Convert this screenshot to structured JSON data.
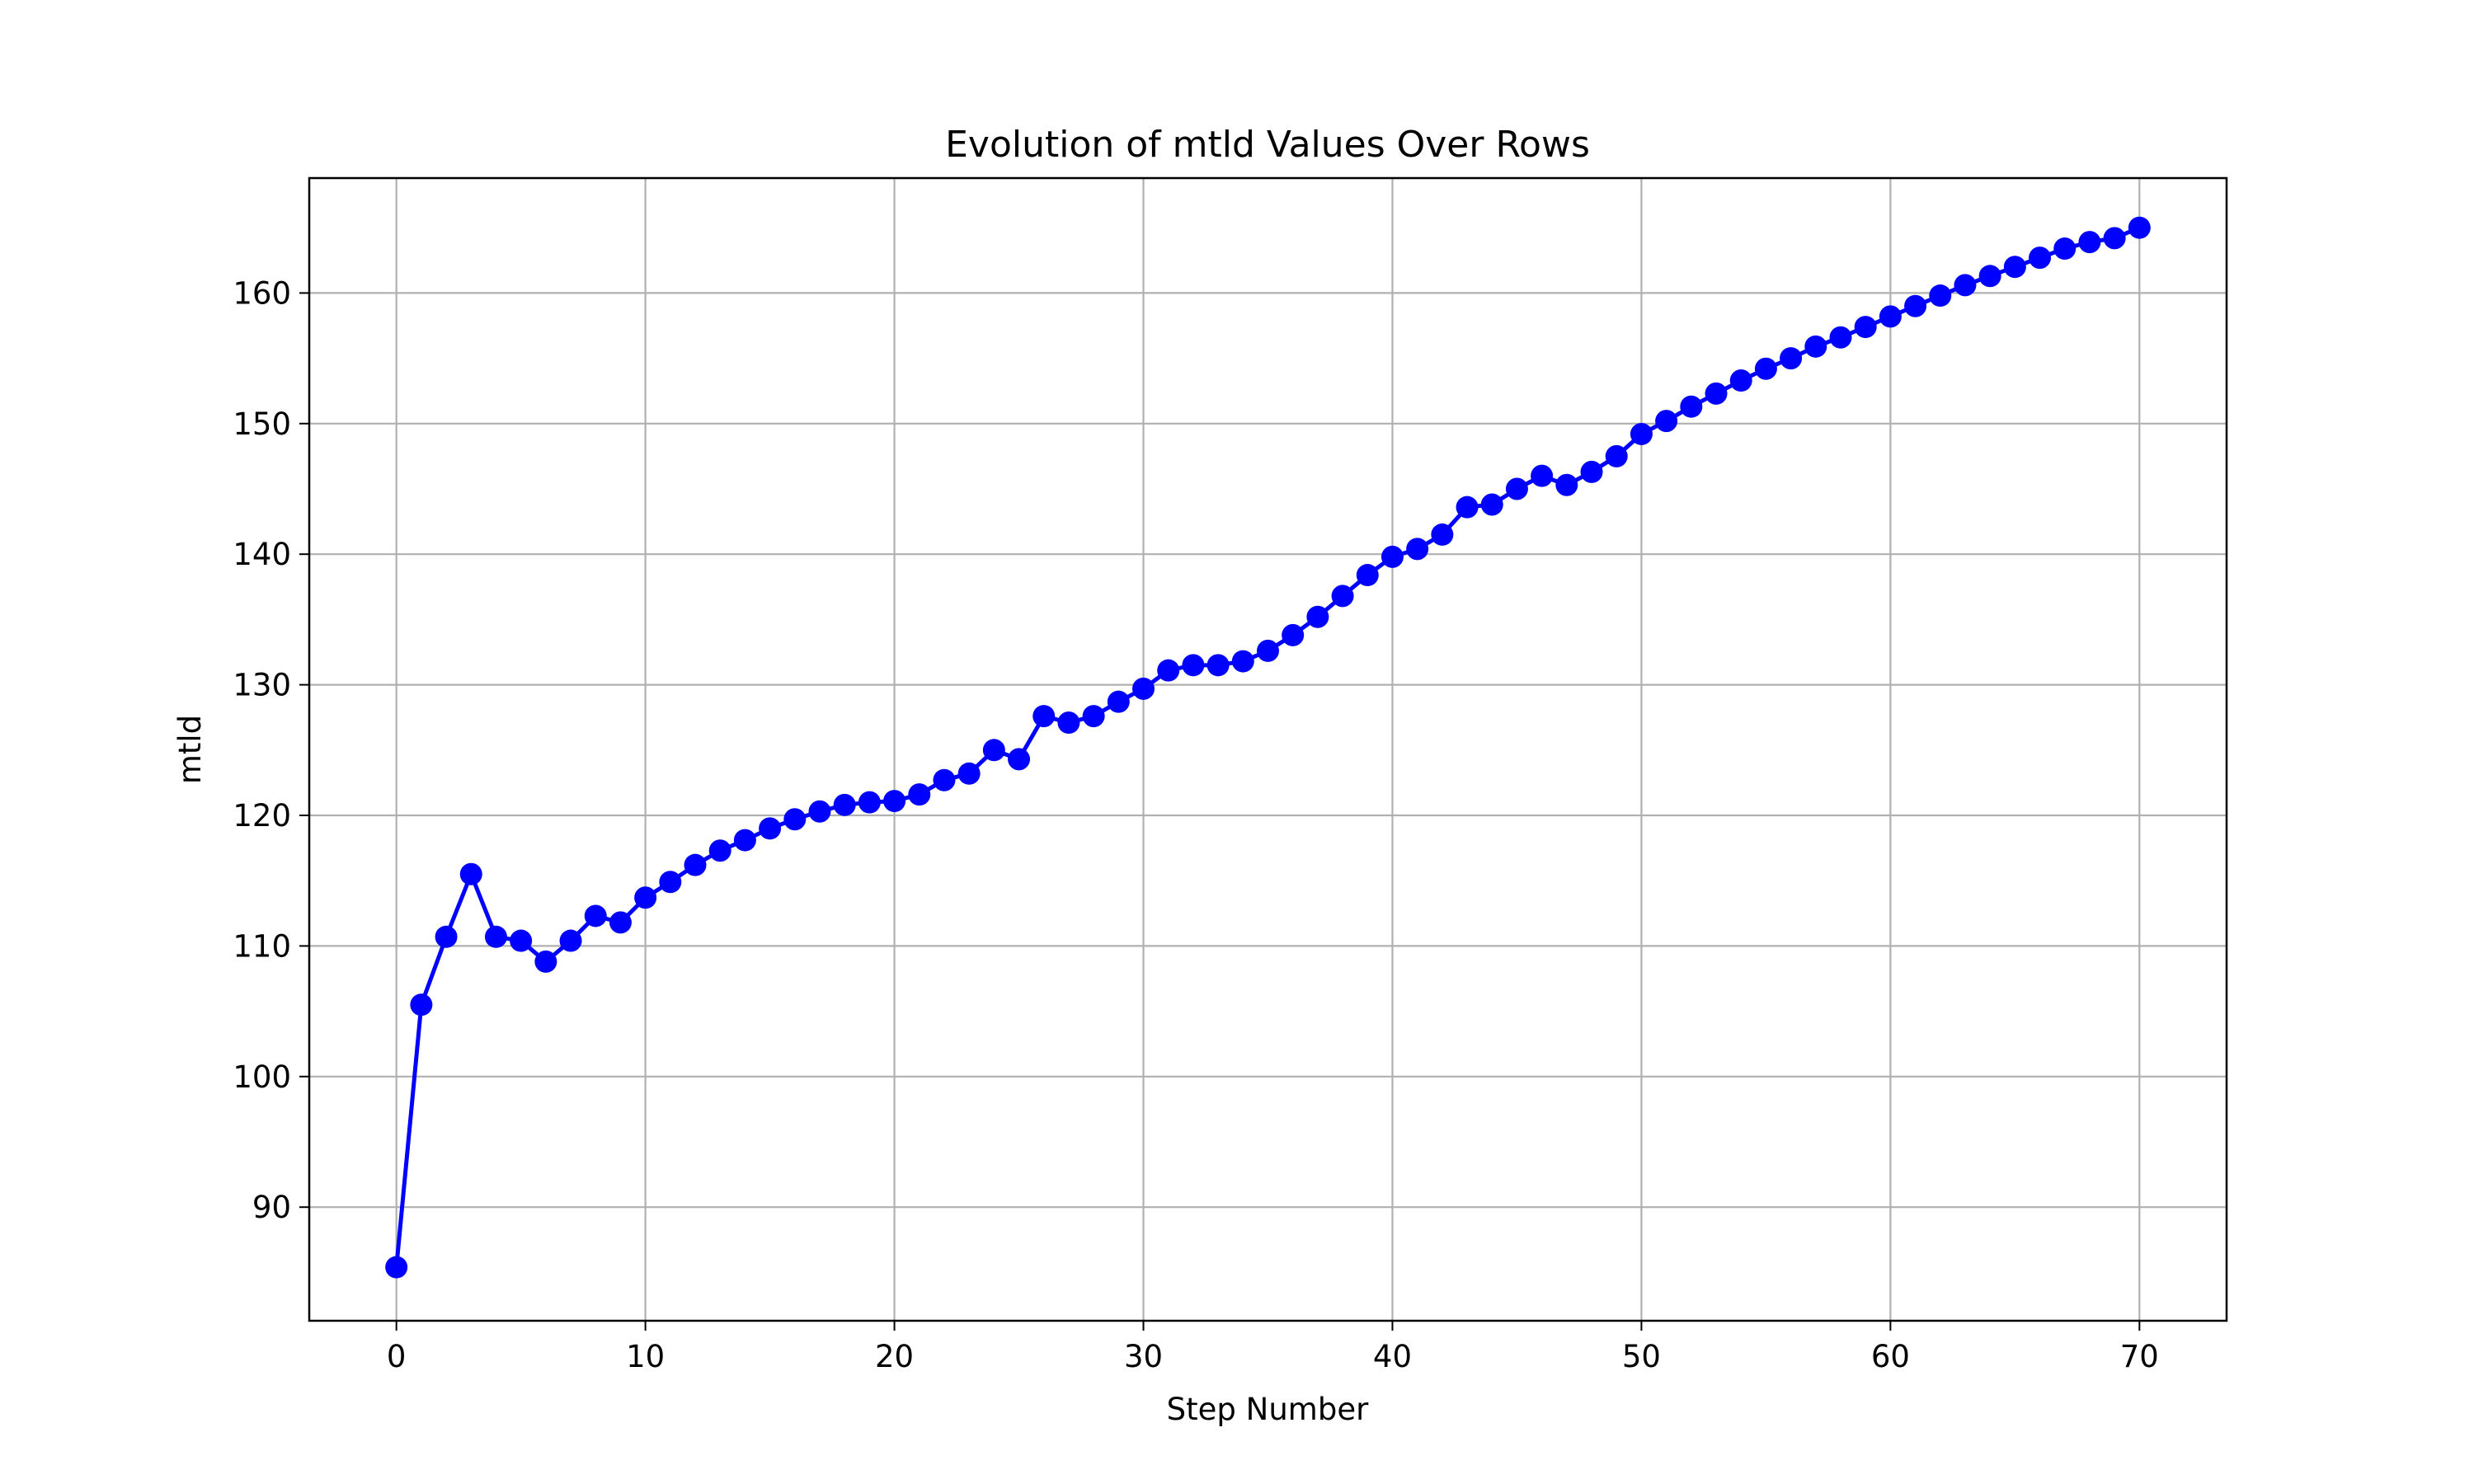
{
  "chart_data": {
    "type": "line",
    "title": "Evolution of mtld Values Over Rows",
    "xlabel": "Step Number",
    "ylabel": "mtld",
    "xlim": [
      -3.5,
      73.5
    ],
    "ylim": [
      81.3,
      168.8
    ],
    "grid": true,
    "legend": false,
    "x_ticks": [
      0,
      10,
      20,
      30,
      40,
      50,
      60,
      70
    ],
    "y_ticks": [
      90,
      100,
      110,
      120,
      130,
      140,
      150,
      160
    ],
    "series": [
      {
        "color": "#0000ff",
        "marker": "circle",
        "x": [
          0,
          1,
          2,
          3,
          4,
          5,
          6,
          7,
          8,
          9,
          10,
          11,
          12,
          13,
          14,
          15,
          16,
          17,
          18,
          19,
          20,
          21,
          22,
          23,
          24,
          25,
          26,
          27,
          28,
          29,
          30,
          31,
          32,
          33,
          34,
          35,
          36,
          37,
          38,
          39,
          40,
          41,
          42,
          43,
          44,
          45,
          46,
          47,
          48,
          49,
          50,
          51,
          52,
          53,
          54,
          55,
          56,
          57,
          58,
          59,
          60,
          61,
          62,
          63,
          64,
          65,
          66,
          67,
          68,
          69,
          70
        ],
        "y": [
          85.4,
          105.5,
          110.7,
          115.5,
          110.7,
          110.4,
          108.8,
          110.4,
          112.3,
          111.8,
          113.7,
          114.9,
          116.2,
          117.3,
          118.1,
          119.0,
          119.7,
          120.3,
          120.8,
          121.0,
          121.1,
          121.6,
          122.7,
          123.2,
          125.0,
          124.3,
          127.6,
          127.1,
          127.6,
          128.7,
          129.7,
          131.1,
          131.5,
          131.5,
          131.8,
          132.6,
          133.8,
          135.2,
          136.8,
          138.4,
          139.8,
          140.4,
          141.5,
          143.6,
          143.8,
          145.0,
          146.0,
          145.3,
          146.3,
          147.5,
          149.2,
          150.2,
          151.3,
          152.3,
          153.3,
          154.2,
          155.0,
          155.9,
          156.6,
          157.4,
          158.2,
          159.0,
          159.8,
          160.6,
          161.3,
          162.0,
          162.7,
          163.4,
          163.9,
          164.2,
          165.0
        ]
      }
    ]
  }
}
